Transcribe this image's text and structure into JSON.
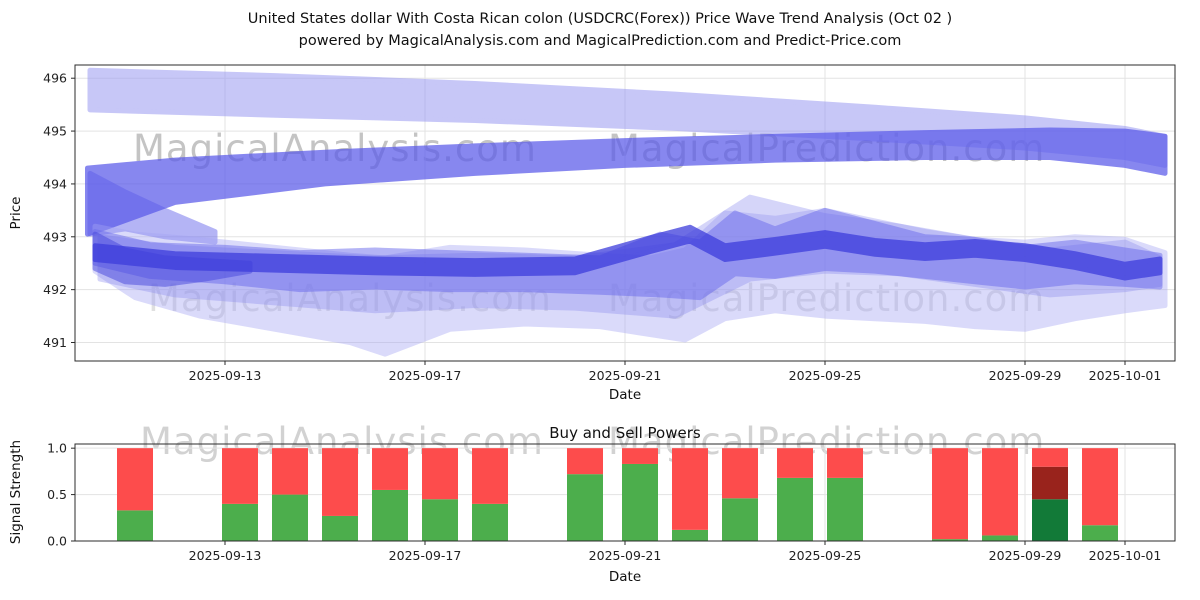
{
  "title": {
    "line1": "United States dollar With Costa Rican colon (USDCRC(Forex)) Price Wave Trend Analysis (Oct 02 )",
    "line2": "powered by MagicalAnalysis.com and MagicalPrediction.com and Predict-Price.com"
  },
  "watermarks": {
    "analysis": "MagicalAnalysis.com",
    "prediction": "MagicalPrediction.com"
  },
  "chart_data": [
    {
      "type": "area",
      "name": "price_wave_trend",
      "xlabel": "Date",
      "ylabel": "Price",
      "x_origin_date": "2025-09-10",
      "x_domain_days": [
        0,
        22
      ],
      "ylim": [
        490.65,
        496.25
      ],
      "grid": true,
      "y_ticks": [
        {
          "label": "491",
          "value": 491
        },
        {
          "label": "492",
          "value": 492
        },
        {
          "label": "493",
          "value": 493
        },
        {
          "label": "494",
          "value": 494
        },
        {
          "label": "495",
          "value": 495
        },
        {
          "label": "496",
          "value": 496
        }
      ],
      "x_ticks": [
        {
          "label": "2025-09-13",
          "day": 3
        },
        {
          "label": "2025-09-17",
          "day": 7
        },
        {
          "label": "2025-09-21",
          "day": 11
        },
        {
          "label": "2025-09-25",
          "day": 15
        },
        {
          "label": "2025-09-29",
          "day": 19
        },
        {
          "label": "2025-10-01",
          "day": 21
        }
      ],
      "bands": [
        {
          "name": "upper-trend-band",
          "color": "#9a9af2",
          "opacity": 0.55,
          "days": [
            0.3,
            4,
            8,
            12,
            16,
            19,
            21,
            21.8
          ],
          "upper": [
            496.15,
            496.05,
            495.9,
            495.7,
            495.45,
            495.25,
            495.05,
            494.9
          ],
          "lower": [
            495.4,
            495.3,
            495.2,
            495.05,
            494.85,
            494.68,
            494.5,
            494.35
          ]
        },
        {
          "name": "mid-trend-band",
          "color": "#5a5aea",
          "opacity": 0.72,
          "days": [
            0.25,
            2,
            5,
            8,
            11,
            14,
            17,
            19.5,
            21,
            21.8
          ],
          "upper": [
            494.3,
            494.45,
            494.6,
            494.72,
            494.82,
            494.9,
            494.97,
            495.02,
            495.0,
            494.9
          ],
          "lower": [
            493.05,
            493.65,
            494.0,
            494.2,
            494.35,
            494.45,
            494.5,
            494.5,
            494.35,
            494.2
          ]
        },
        {
          "name": "left-wedge-band",
          "color": "#5a5aea",
          "opacity": 0.45,
          "days": [
            0.3,
            1,
            1.8,
            2.8
          ],
          "upper": [
            494.2,
            493.85,
            493.5,
            493.1
          ],
          "lower": [
            493.05,
            493.15,
            493.0,
            492.9
          ]
        },
        {
          "name": "lower-wide-band",
          "color": "#a4a4f4",
          "opacity": 0.4,
          "days": [
            0.4,
            1.2,
            2.5,
            4,
            5.5,
            6.2,
            7.5,
            9,
            10.5,
            11.5,
            12.2,
            13,
            14,
            15,
            16,
            17,
            18,
            19,
            20,
            21,
            21.8
          ],
          "upper": [
            493.2,
            493.05,
            492.95,
            492.8,
            492.65,
            492.6,
            492.8,
            492.75,
            492.65,
            492.6,
            492.75,
            493.45,
            493.35,
            493.5,
            493.3,
            493.1,
            492.95,
            492.9,
            493.0,
            492.95,
            492.7
          ],
          "lower": [
            492.35,
            491.85,
            491.5,
            491.25,
            491.0,
            490.78,
            491.25,
            491.35,
            491.3,
            491.15,
            491.05,
            491.45,
            491.6,
            491.5,
            491.45,
            491.4,
            491.3,
            491.25,
            491.45,
            491.6,
            491.7
          ]
        },
        {
          "name": "lower-light-band",
          "color": "#8a8aee",
          "opacity": 0.35,
          "days": [
            0.5,
            2,
            4,
            6,
            8,
            10,
            12,
            13.5,
            15,
            16.5,
            18,
            19.5,
            21,
            21.7
          ],
          "upper": [
            493.0,
            492.8,
            492.7,
            492.6,
            492.65,
            492.6,
            492.85,
            493.75,
            493.4,
            493.2,
            492.95,
            492.75,
            492.9,
            492.6
          ],
          "lower": [
            492.2,
            491.9,
            491.75,
            491.6,
            491.7,
            491.65,
            491.5,
            492.2,
            492.35,
            492.3,
            492.1,
            491.9,
            492.0,
            492.1
          ]
        },
        {
          "name": "lower-mid-band",
          "color": "#6b6bec",
          "opacity": 0.5,
          "days": [
            0.4,
            1.5,
            3,
            4.5,
            6,
            7.5,
            9,
            10.5,
            11.7,
            12.5,
            13.2,
            14,
            15,
            16,
            17,
            18,
            19,
            20,
            21,
            21.7
          ],
          "upper": [
            493.1,
            492.85,
            492.8,
            492.7,
            492.75,
            492.7,
            492.65,
            492.6,
            493.05,
            492.9,
            493.45,
            493.15,
            493.5,
            493.25,
            493.0,
            492.95,
            492.8,
            492.9,
            492.75,
            492.65
          ],
          "lower": [
            492.5,
            492.25,
            492.15,
            492.0,
            492.05,
            492.0,
            492.0,
            491.95,
            491.9,
            491.85,
            492.3,
            492.25,
            492.4,
            492.35,
            492.25,
            492.15,
            492.05,
            492.15,
            492.1,
            492.05
          ]
        },
        {
          "name": "left-dark-streak",
          "color": "#4646dd",
          "opacity": 0.5,
          "days": [
            0.4,
            1,
            1.8,
            2.6,
            3.5
          ],
          "upper": [
            493.05,
            492.75,
            492.6,
            492.55,
            492.5
          ],
          "lower": [
            492.4,
            492.15,
            492.1,
            492.2,
            492.35
          ]
        },
        {
          "name": "core-trend-line",
          "color": "#3d3ddc",
          "opacity": 0.75,
          "days": [
            0.4,
            2,
            4,
            6,
            8,
            10,
            11.5,
            12.3,
            13,
            14,
            15,
            16,
            17,
            18,
            19,
            20,
            21,
            21.7
          ],
          "upper": [
            492.83,
            492.68,
            492.63,
            492.58,
            492.55,
            492.58,
            492.98,
            493.18,
            492.83,
            492.95,
            493.08,
            492.93,
            492.85,
            492.91,
            492.83,
            492.68,
            492.48,
            492.58
          ],
          "lower": [
            492.57,
            492.42,
            492.37,
            492.32,
            492.29,
            492.32,
            492.72,
            492.92,
            492.57,
            492.69,
            492.82,
            492.67,
            492.59,
            492.65,
            492.57,
            492.42,
            492.22,
            492.32
          ]
        }
      ]
    },
    {
      "type": "bar",
      "name": "buy_sell_powers",
      "title": "Buy and Sell Powers",
      "xlabel": "Date",
      "ylabel": "Signal Strength",
      "ylim": [
        0,
        1.045
      ],
      "bar_width_days": 0.72,
      "grid": true,
      "colors": {
        "buy": "#4cae4c",
        "sell": "#fd4c4c",
        "buy_dark": "#127a38",
        "sell_dark": "#99231c"
      },
      "y_ticks": [
        {
          "label": "0.0",
          "value": 0
        },
        {
          "label": "0.5",
          "value": 0.5
        },
        {
          "label": "1.0",
          "value": 1
        }
      ],
      "x_ticks": [
        {
          "label": "2025-09-13",
          "day": 3
        },
        {
          "label": "2025-09-17",
          "day": 7
        },
        {
          "label": "2025-09-21",
          "day": 11
        },
        {
          "label": "2025-09-25",
          "day": 15
        },
        {
          "label": "2025-09-29",
          "day": 19
        },
        {
          "label": "2025-10-01",
          "day": 21
        }
      ],
      "bars": [
        {
          "date": "2025-09-11",
          "day": 1.2,
          "segments": [
            [
              "buy",
              0,
              0.33
            ],
            [
              "sell",
              0.33,
              1.0
            ]
          ]
        },
        {
          "date": "2025-09-13",
          "day": 3.3,
          "segments": [
            [
              "buy",
              0,
              0.4
            ],
            [
              "sell",
              0.4,
              1.0
            ]
          ]
        },
        {
          "date": "2025-09-14",
          "day": 4.3,
          "segments": [
            [
              "buy",
              0,
              0.5
            ],
            [
              "sell",
              0.5,
              1.0
            ]
          ]
        },
        {
          "date": "2025-09-15",
          "day": 5.3,
          "segments": [
            [
              "buy",
              0,
              0.27
            ],
            [
              "sell",
              0.27,
              1.0
            ]
          ]
        },
        {
          "date": "2025-09-16",
          "day": 6.3,
          "segments": [
            [
              "buy",
              0,
              0.55
            ],
            [
              "sell",
              0.55,
              1.0
            ]
          ]
        },
        {
          "date": "2025-09-17",
          "day": 7.3,
          "segments": [
            [
              "buy",
              0,
              0.45
            ],
            [
              "sell",
              0.45,
              1.0
            ]
          ]
        },
        {
          "date": "2025-09-18",
          "day": 8.3,
          "segments": [
            [
              "buy",
              0,
              0.4
            ],
            [
              "sell",
              0.4,
              1.0
            ]
          ]
        },
        {
          "date": "2025-09-20",
          "day": 10.2,
          "segments": [
            [
              "buy",
              0,
              0.72
            ],
            [
              "sell",
              0.72,
              1.0
            ]
          ]
        },
        {
          "date": "2025-09-21",
          "day": 11.3,
          "segments": [
            [
              "buy",
              0,
              0.83
            ],
            [
              "sell",
              0.83,
              1.0
            ]
          ]
        },
        {
          "date": "2025-09-22",
          "day": 12.3,
          "segments": [
            [
              "buy",
              0,
              0.12
            ],
            [
              "sell",
              0.12,
              1.0
            ]
          ]
        },
        {
          "date": "2025-09-23",
          "day": 13.3,
          "segments": [
            [
              "buy",
              0,
              0.46
            ],
            [
              "sell",
              0.46,
              1.0
            ]
          ]
        },
        {
          "date": "2025-09-24",
          "day": 14.4,
          "segments": [
            [
              "buy",
              0,
              0.68
            ],
            [
              "sell",
              0.68,
              1.0
            ]
          ]
        },
        {
          "date": "2025-09-25",
          "day": 15.4,
          "segments": [
            [
              "buy",
              0,
              0.68
            ],
            [
              "sell",
              0.68,
              1.0
            ]
          ]
        },
        {
          "date": "2025-09-28",
          "day": 17.5,
          "segments": [
            [
              "buy",
              0,
              0.02
            ],
            [
              "sell",
              0.02,
              1.0
            ]
          ]
        },
        {
          "date": "2025-09-29",
          "day": 18.5,
          "segments": [
            [
              "buy",
              0,
              0.06
            ],
            [
              "sell",
              0.06,
              1.0
            ]
          ]
        },
        {
          "date": "2025-09-30",
          "day": 19.5,
          "segments": [
            [
              "buy_dark",
              0,
              0.45
            ],
            [
              "sell_dark",
              0.45,
              0.8
            ],
            [
              "sell",
              0.8,
              1.0
            ]
          ]
        },
        {
          "date": "2025-10-01",
          "day": 20.5,
          "segments": [
            [
              "buy",
              0,
              0.17
            ],
            [
              "sell",
              0.17,
              1.0
            ]
          ]
        }
      ]
    }
  ]
}
